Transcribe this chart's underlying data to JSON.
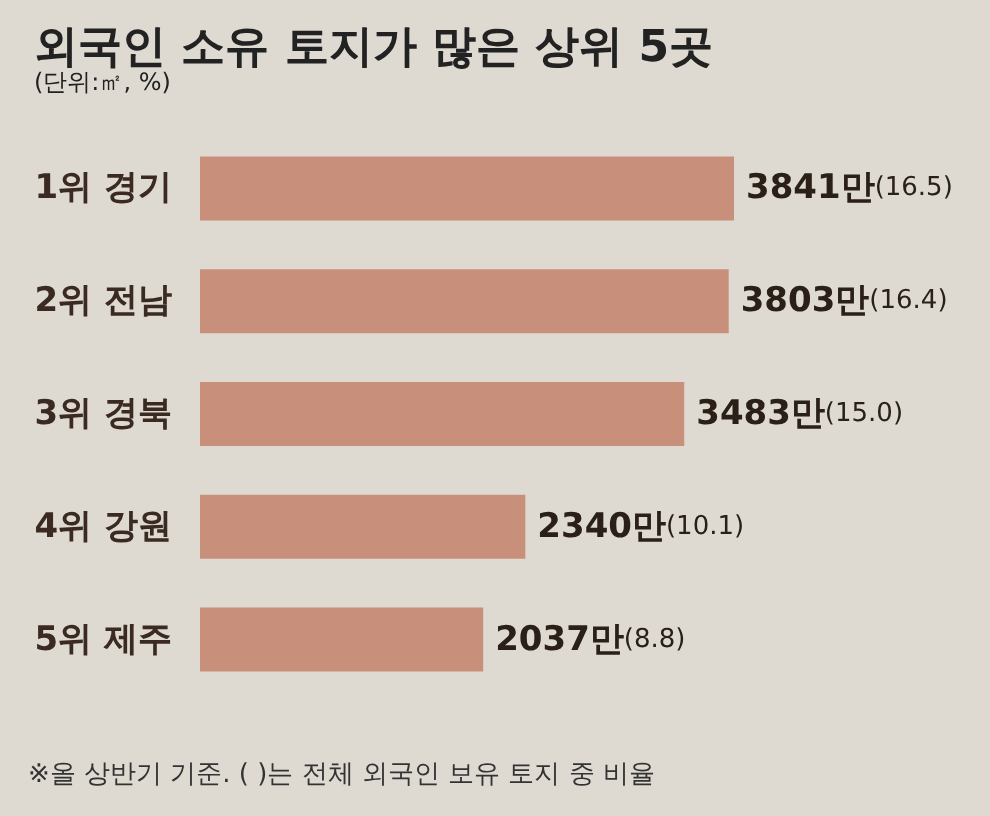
{
  "chart_data": {
    "type": "bar",
    "orientation": "horizontal",
    "title": "외국인 소유 토지가 많은 상위 5곳",
    "subtitle": "(단위:㎡, %)",
    "categories": [
      "1위 경기",
      "2위 전남",
      "3위 경북",
      "4위 강원",
      "5위 제주"
    ],
    "values": [
      3841,
      3803,
      3483,
      2340,
      2037
    ],
    "color": "#c8907a",
    "value_labels": [
      "3841만(16.5)",
      "3803만(16.4)",
      "3483만(15.0)",
      "2340만(10.1)",
      "2037만(8.8)"
    ],
    "annotations": [
      "※올 상반기 기준. ( )는 전체 외국인 보유 토지 중 비율"
    ],
    "data_labels": false
  }
}
